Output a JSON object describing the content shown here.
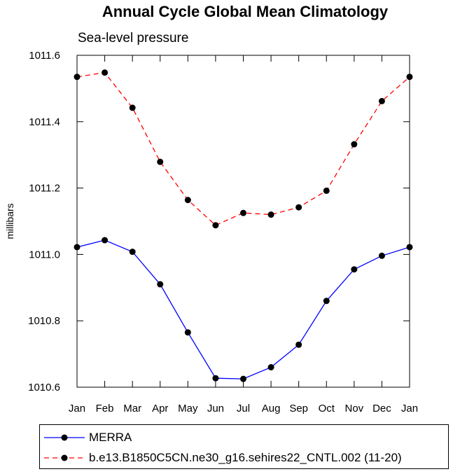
{
  "chart_data": {
    "type": "line",
    "title": "Annual Cycle Global Mean Climatology",
    "subtitle": "Sea-level pressure",
    "xlabel": "",
    "ylabel": "millibars",
    "categories": [
      "Jan",
      "Feb",
      "Mar",
      "Apr",
      "May",
      "Jun",
      "Jul",
      "Aug",
      "Sep",
      "Oct",
      "Nov",
      "Dec",
      "Jan"
    ],
    "ylim": [
      1010.6,
      1011.6
    ],
    "yticks": [
      1010.6,
      1010.8,
      1011.0,
      1011.2,
      1011.4,
      1011.6
    ],
    "ytick_labels": [
      "1010.6",
      "1010.8",
      "1011.0",
      "1011.2",
      "1011.4",
      "1011.6"
    ],
    "grid": false,
    "legend_position": "bottom",
    "series": [
      {
        "name": "MERRA",
        "color": "#0000ff",
        "style": "solid",
        "values": [
          1011.022,
          1011.043,
          1011.008,
          1010.91,
          1010.765,
          1010.627,
          1010.625,
          1010.66,
          1010.728,
          1010.86,
          1010.955,
          1010.996,
          1011.022
        ]
      },
      {
        "name": "b.e13.B1850C5CN.ne30_g16.sehires22_CNTL.002 (11-20)",
        "color": "#ff0000",
        "style": "dashed",
        "values": [
          1011.535,
          1011.548,
          1011.442,
          1011.279,
          1011.164,
          1011.088,
          1011.125,
          1011.12,
          1011.142,
          1011.192,
          1011.332,
          1011.462,
          1011.535
        ]
      }
    ]
  }
}
